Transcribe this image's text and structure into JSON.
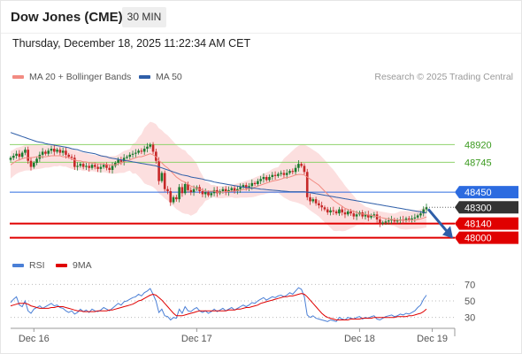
{
  "header": {
    "instrument": "Dow Jones (CME)",
    "timeframe": "30 MIN"
  },
  "timestamp": "Thursday, December 18, 2025 11:22:34 AM CET",
  "credit": "Research © 2025 Trading Central",
  "legend": {
    "ma20": "MA 20 + Bollinger Bands",
    "ma50": "MA 50",
    "rsi": "RSI",
    "rsi_ma": "9MA"
  },
  "colors": {
    "candle_up": "#1b7a2e",
    "candle_down": "#c62828",
    "ma20": "#f28b82",
    "ma50": "#2e5ea8",
    "bands": "#fbd7d7",
    "resistance": "#8fd36b",
    "pivot": "#2c6be0",
    "support": "#e00000",
    "rsi": "#4a7fd6",
    "rsi_ma": "#e00000",
    "arrow": "#2e5ea8"
  },
  "chart_data": [
    {
      "type": "candlestick",
      "x_ticks": [
        "Dec 16",
        "Dec 17",
        "Dec 18",
        "Dec 19"
      ],
      "x_tick_index": [
        8,
        64,
        120,
        145
      ],
      "ylim": [
        47900,
        49300
      ],
      "levels": [
        {
          "value": 48920,
          "kind": "resistance",
          "label": "48920"
        },
        {
          "value": 48745,
          "kind": "resistance",
          "label": "48745"
        },
        {
          "value": 48450,
          "kind": "pivot",
          "label": "48450"
        },
        {
          "value": 48300,
          "kind": "current",
          "label": "48300"
        },
        {
          "value": 48140,
          "kind": "support",
          "label": "48140"
        },
        {
          "value": 48000,
          "kind": "support",
          "label": "48000"
        }
      ],
      "close": [
        48790,
        48810,
        48830,
        48800,
        48840,
        48870,
        48760,
        48700,
        48740,
        48780,
        48820,
        48850,
        48830,
        48860,
        48880,
        48850,
        48870,
        48840,
        48860,
        48820,
        48800,
        48790,
        48700,
        48710,
        48730,
        48700,
        48710,
        48690,
        48720,
        48700,
        48680,
        48700,
        48720,
        48690,
        48670,
        48710,
        48740,
        48770,
        48750,
        48790,
        48800,
        48820,
        48830,
        48840,
        48860,
        48850,
        48880,
        48900,
        48920,
        48850,
        48760,
        48560,
        48640,
        48480,
        48460,
        48350,
        48400,
        48380,
        48500,
        48440,
        48530,
        48470,
        48450,
        48480,
        48500,
        48460,
        48430,
        48450,
        48420,
        48440,
        48470,
        48440,
        48460,
        48480,
        48450,
        48470,
        48490,
        48460,
        48480,
        48500,
        48520,
        48490,
        48510,
        48540,
        48530,
        48560,
        48580,
        48600,
        48570,
        48600,
        48620,
        48610,
        48630,
        48640,
        48620,
        48640,
        48660,
        48650,
        48690,
        48730,
        48710,
        48650,
        48400,
        48360,
        48380,
        48340,
        48320,
        48300,
        48280,
        48250,
        48270,
        48260,
        48240,
        48280,
        48250,
        48230,
        48260,
        48240,
        48210,
        48230,
        48250,
        48210,
        48230,
        48200,
        48220,
        48230,
        48180,
        48140,
        48150,
        48160,
        48170,
        48180,
        48160,
        48170,
        48180,
        48170,
        48190,
        48180,
        48190,
        48200,
        48220,
        48240,
        48280,
        48300
      ],
      "ma20": [
        48720,
        48740,
        48760,
        48770,
        48780,
        48790,
        48790,
        48790,
        48795,
        48800,
        48800,
        48800,
        48800,
        48805,
        48810,
        48810,
        48810,
        48810,
        48800,
        48800,
        48790,
        48780,
        48770,
        48760,
        48760,
        48750,
        48750,
        48740,
        48740,
        48735,
        48730,
        48730,
        48730,
        48725,
        48720,
        48720,
        48720,
        48730,
        48740,
        48750,
        48760,
        48770,
        48780,
        48790,
        48800,
        48800,
        48810,
        48820,
        48830,
        48820,
        48800,
        48760,
        48740,
        48710,
        48690,
        48660,
        48630,
        48600,
        48580,
        48560,
        48550,
        48530,
        48510,
        48500,
        48490,
        48480,
        48470,
        48460,
        48460,
        48460,
        48460,
        48450,
        48450,
        48450,
        48455,
        48455,
        48460,
        48460,
        48465,
        48470,
        48475,
        48480,
        48485,
        48490,
        48500,
        48510,
        48520,
        48530,
        48540,
        48550,
        48560,
        48565,
        48570,
        48580,
        48590,
        48595,
        48600,
        48610,
        48620,
        48625,
        48625,
        48620,
        48600,
        48580,
        48560,
        48540,
        48520,
        48490,
        48460,
        48430,
        48400,
        48370,
        48350,
        48330,
        48310,
        48290,
        48280,
        48270,
        48260,
        48250,
        48240,
        48235,
        48230,
        48225,
        48220,
        48215,
        48210,
        48200,
        48195,
        48190,
        48185,
        48180,
        48178,
        48175,
        48174,
        48173,
        48172,
        48172,
        48173,
        48175,
        48180,
        48185,
        48195,
        48205
      ],
      "ma50": [
        49040,
        49030,
        49020,
        49010,
        49000,
        48990,
        48980,
        48970,
        48960,
        48950,
        48945,
        48940,
        48930,
        48925,
        48920,
        48915,
        48910,
        48905,
        48900,
        48895,
        48890,
        48880,
        48875,
        48870,
        48860,
        48850,
        48845,
        48840,
        48835,
        48830,
        48820,
        48810,
        48805,
        48800,
        48790,
        48785,
        48780,
        48775,
        48770,
        48765,
        48760,
        48755,
        48750,
        48745,
        48740,
        48735,
        48730,
        48725,
        48720,
        48715,
        48710,
        48700,
        48690,
        48680,
        48670,
        48660,
        48650,
        48640,
        48630,
        48620,
        48615,
        48610,
        48600,
        48595,
        48590,
        48585,
        48580,
        48570,
        48565,
        48560,
        48550,
        48545,
        48540,
        48535,
        48530,
        48525,
        48520,
        48515,
        48510,
        48505,
        48500,
        48498,
        48495,
        48490,
        48488,
        48485,
        48480,
        48478,
        48475,
        48472,
        48470,
        48468,
        48465,
        48462,
        48460,
        48458,
        48455,
        48455,
        48455,
        48455,
        48455,
        48455,
        48450,
        48445,
        48440,
        48435,
        48430,
        48425,
        48420,
        48415,
        48410,
        48405,
        48400,
        48395,
        48390,
        48385,
        48380,
        48375,
        48370,
        48365,
        48360,
        48355,
        48350,
        48345,
        48340,
        48335,
        48330,
        48325,
        48320,
        48315,
        48310,
        48305,
        48300,
        48295,
        48290,
        48285,
        48280,
        48275,
        48270,
        48265,
        48260,
        48255,
        48250,
        48245
      ],
      "rsi": [
        48,
        52,
        55,
        45,
        43,
        50,
        38,
        35,
        40,
        42,
        44,
        41,
        43,
        45,
        47,
        44,
        45,
        42,
        41,
        38,
        36,
        38,
        34,
        36,
        40,
        37,
        39,
        36,
        40,
        38,
        37,
        39,
        42,
        40,
        38,
        41,
        44,
        47,
        45,
        49,
        50,
        52,
        54,
        55,
        58,
        56,
        60,
        62,
        65,
        58,
        50,
        36,
        40,
        32,
        31,
        27,
        30,
        29,
        40,
        35,
        43,
        38,
        37,
        40,
        42,
        38,
        36,
        38,
        35,
        37,
        40,
        37,
        39,
        41,
        38,
        40,
        42,
        39,
        41,
        43,
        45,
        43,
        45,
        48,
        47,
        50,
        52,
        54,
        51,
        53,
        55,
        54,
        56,
        57,
        55,
        57,
        60,
        58,
        62,
        66,
        64,
        55,
        33,
        30,
        32,
        29,
        28,
        27,
        26,
        25,
        27,
        26,
        25,
        30,
        28,
        27,
        30,
        29,
        28,
        30,
        31,
        28,
        30,
        29,
        31,
        32,
        28,
        27,
        29,
        31,
        32,
        33,
        31,
        32,
        34,
        33,
        35,
        34,
        36,
        38,
        42,
        45,
        52,
        57
      ],
      "rsi_ma": [
        44,
        45,
        46,
        47,
        47,
        47,
        46,
        44,
        43,
        42,
        41,
        41,
        41,
        41,
        42,
        42,
        43,
        43,
        43,
        42,
        41,
        40,
        39,
        38,
        38,
        37,
        37,
        37,
        37,
        37,
        38,
        38,
        38,
        38,
        39,
        39,
        40,
        41,
        42,
        43,
        44,
        45,
        46,
        48,
        50,
        51,
        53,
        55,
        57,
        58,
        57,
        54,
        51,
        47,
        43,
        39,
        35,
        32,
        32,
        32,
        33,
        34,
        35,
        36,
        37,
        38,
        38,
        38,
        38,
        38,
        38,
        38,
        38,
        38,
        38,
        39,
        39,
        39,
        40,
        40,
        41,
        42,
        42,
        43,
        44,
        45,
        47,
        48,
        49,
        50,
        51,
        52,
        53,
        54,
        55,
        55,
        56,
        56,
        57,
        58,
        59,
        58,
        55,
        51,
        47,
        43,
        39,
        35,
        32,
        30,
        29,
        28,
        27,
        27,
        27,
        27,
        27,
        28,
        28,
        28,
        28,
        29,
        29,
        29,
        29,
        30,
        30,
        30,
        30,
        30,
        30,
        30,
        30,
        31,
        31,
        31,
        31,
        32,
        32,
        33,
        34,
        35,
        37,
        40
      ],
      "rsi_ylim": [
        20,
        80
      ],
      "rsi_ticks": [
        70,
        50,
        30
      ]
    }
  ]
}
